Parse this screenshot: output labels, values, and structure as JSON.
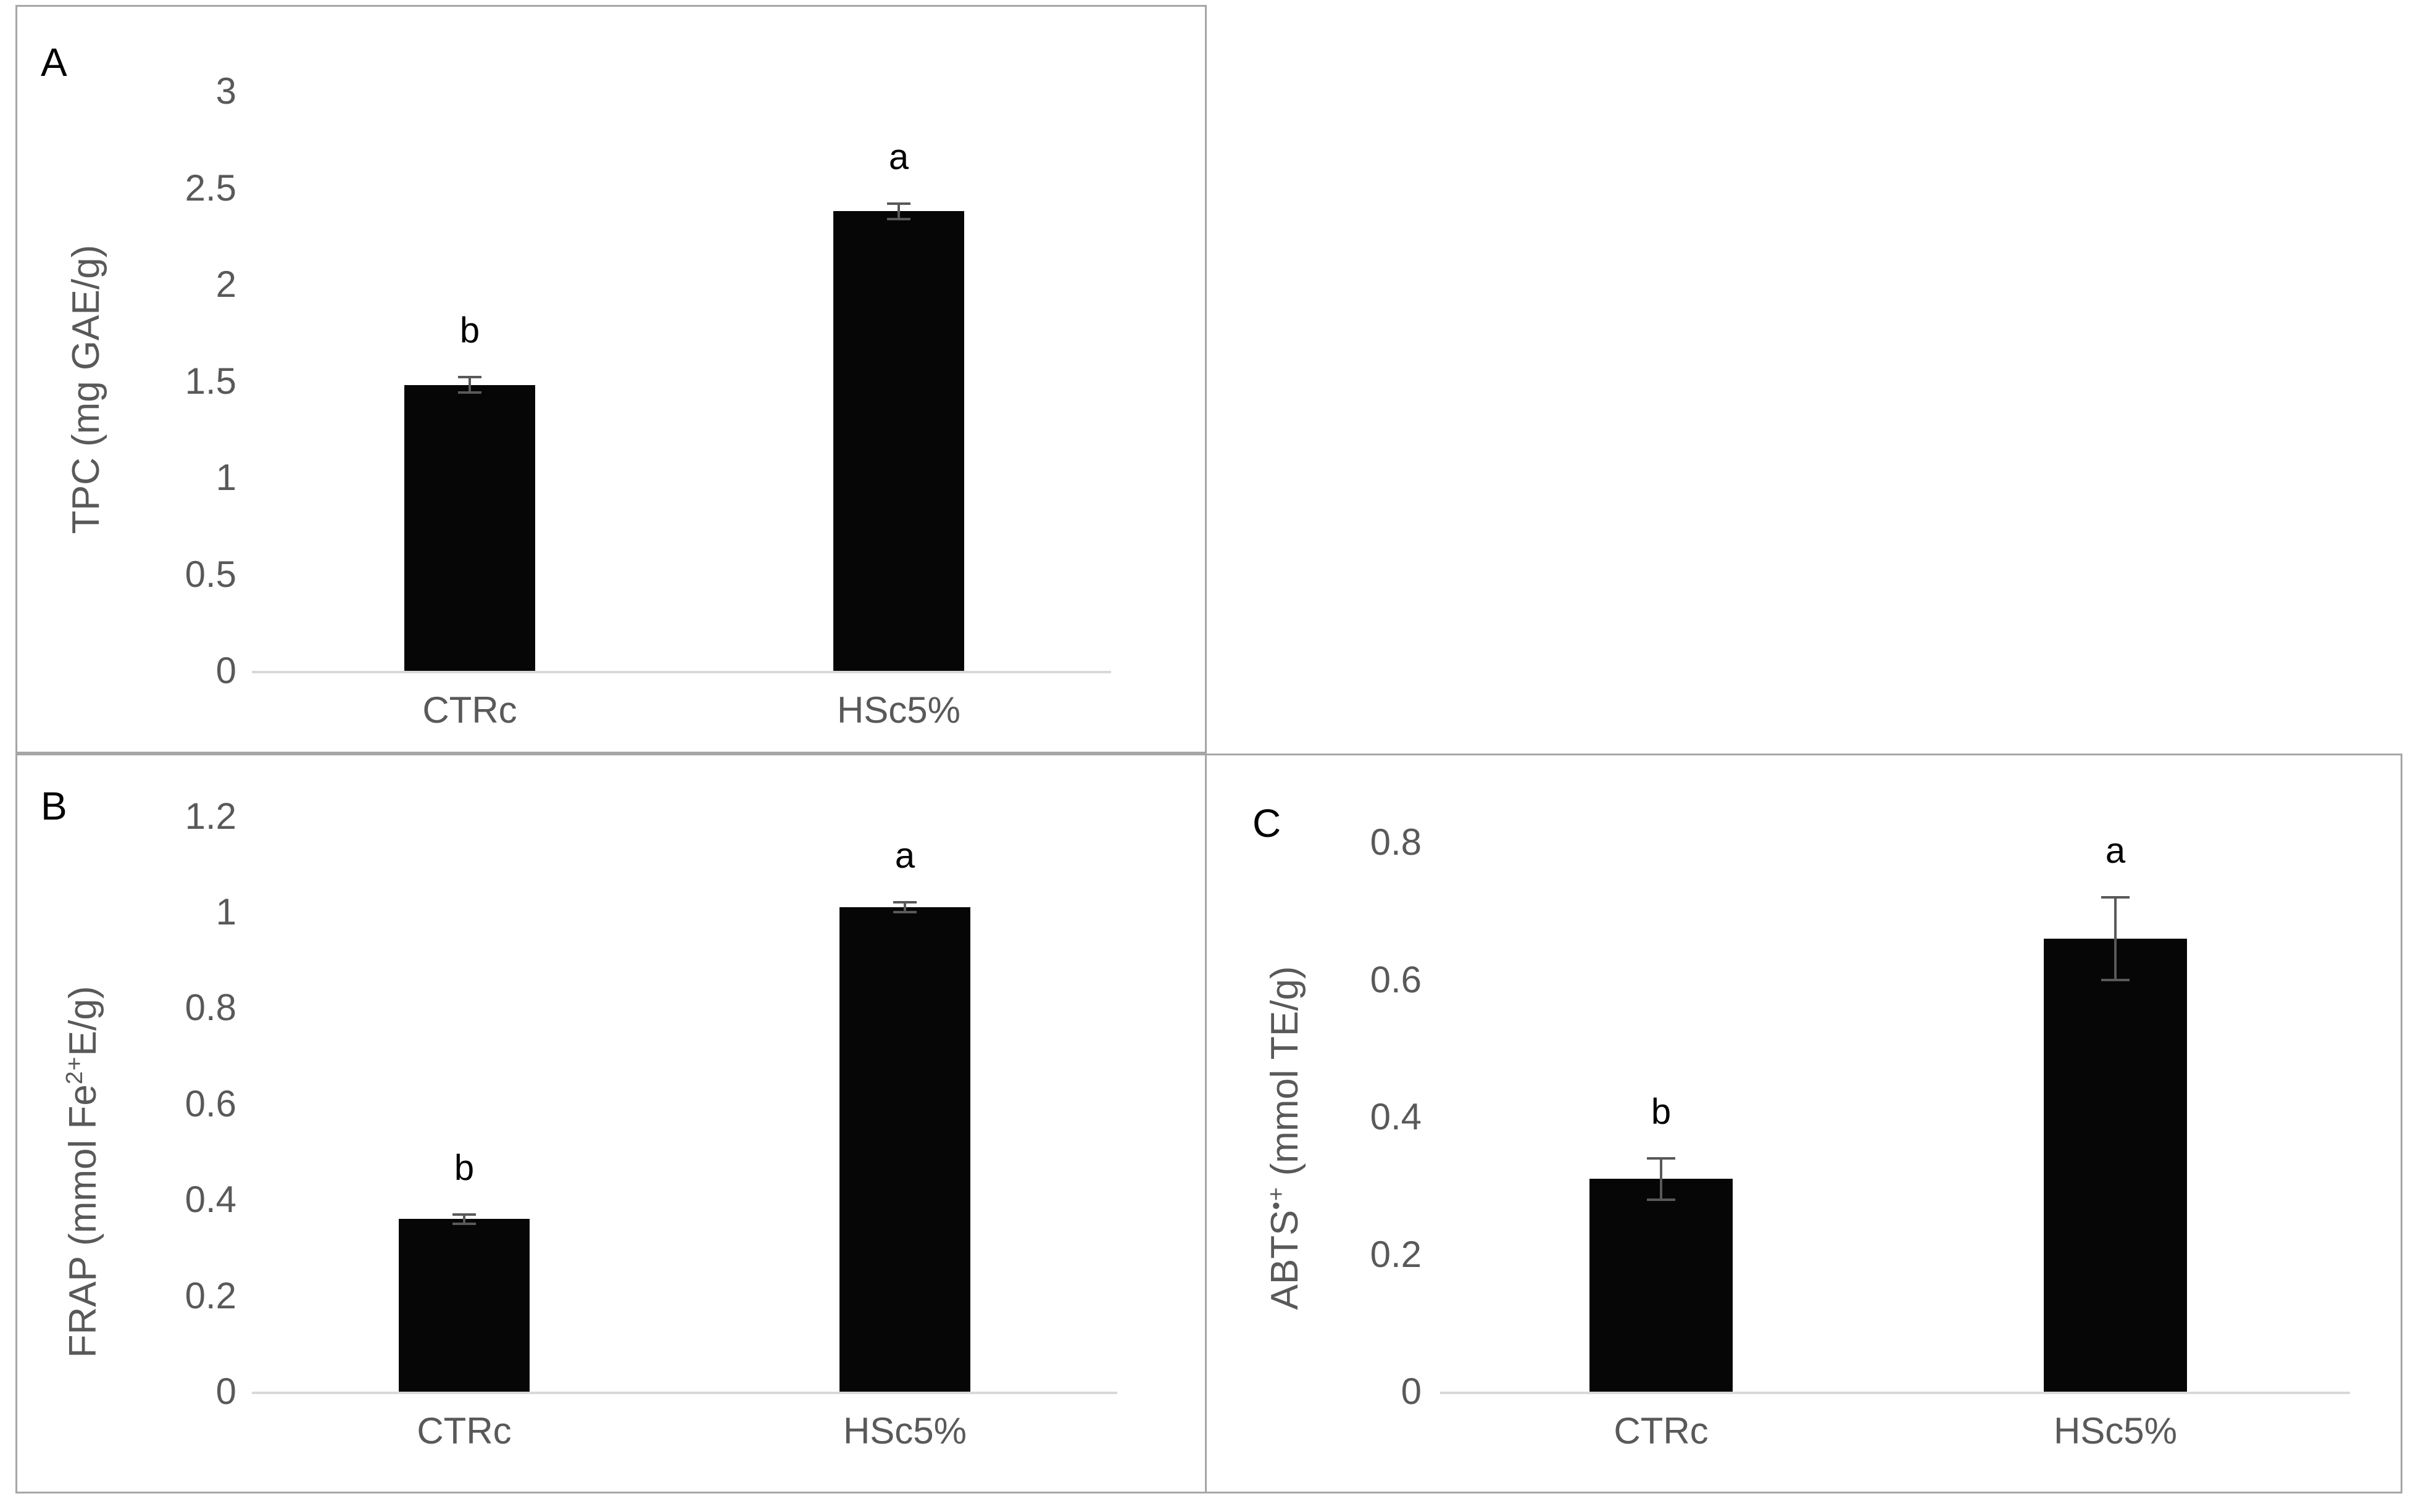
{
  "colors": {
    "bar": "#060606",
    "axis_line": "#d9d9d9",
    "tick_text": "#595959",
    "axis_title_text": "#595959",
    "error_bar": "#595959",
    "panel_border": "#a6a6a6",
    "panel_letter": "#000000",
    "sig_letter": "#000000",
    "background": "#ffffff"
  },
  "chart_data": [
    {
      "type": "bar",
      "panel_label": "A",
      "ylabel_text": "TPC (mg GAE/g)",
      "ylabel_parts": [
        {
          "t": "TPC (mg GAE/g)",
          "sup": false
        }
      ],
      "categories": [
        "CTRc",
        "HSc5%"
      ],
      "values": [
        1.48,
        2.38
      ],
      "errors": [
        0.04,
        0.04
      ],
      "sig_letters": [
        "b",
        "a"
      ],
      "yticks": [
        0,
        0.5,
        1,
        1.5,
        2,
        2.5,
        3
      ],
      "ytick_labels": [
        "0",
        "0.5",
        "1",
        "1.5",
        "2",
        "2.5",
        "3"
      ],
      "ylim": [
        0,
        3
      ],
      "grid": false,
      "legend": "none"
    },
    {
      "type": "bar",
      "panel_label": "B",
      "ylabel_text": "FRAP (mmol Fe2+E/g)",
      "ylabel_parts": [
        {
          "t": "FRAP (mmol Fe",
          "sup": false
        },
        {
          "t": "2+",
          "sup": true
        },
        {
          "t": "E/g)",
          "sup": false
        }
      ],
      "categories": [
        "CTRc",
        "HSc5%"
      ],
      "values": [
        0.36,
        1.01
      ],
      "errors": [
        0.01,
        0.01
      ],
      "sig_letters": [
        "b",
        "a"
      ],
      "yticks": [
        0,
        0.2,
        0.4,
        0.6,
        0.8,
        1,
        1.2
      ],
      "ytick_labels": [
        "0",
        "0.2",
        "0.4",
        "0.6",
        "0.8",
        "1",
        "1.2"
      ],
      "ylim": [
        0,
        1.2
      ],
      "grid": false,
      "legend": "none"
    },
    {
      "type": "bar",
      "panel_label": "C",
      "ylabel_text": "ABTS•+ (mmol TE/g)",
      "ylabel_parts": [
        {
          "t": "ABTS",
          "sup": false
        },
        {
          "t": "•+",
          "sup": true
        },
        {
          "t": " (mmol TE/g)",
          "sup": false
        }
      ],
      "categories": [
        "CTRc",
        "HSc5%"
      ],
      "values": [
        0.31,
        0.66
      ],
      "errors": [
        0.03,
        0.06
      ],
      "sig_letters": [
        "b",
        "a"
      ],
      "yticks": [
        0,
        0.2,
        0.4,
        0.6,
        0.8
      ],
      "ytick_labels": [
        "0",
        "0.2",
        "0.4",
        "0.6",
        "0.8"
      ],
      "ylim": [
        0,
        0.8
      ],
      "grid": false,
      "legend": "none"
    }
  ]
}
